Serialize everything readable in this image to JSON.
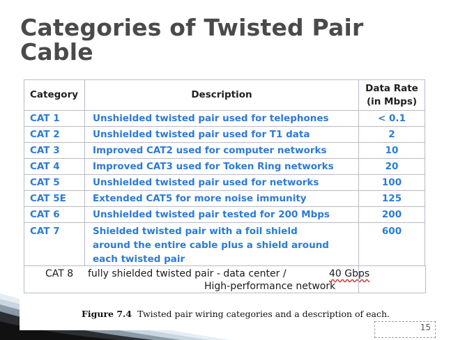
{
  "slide": {
    "title": "Categories of Twisted Pair Cable",
    "page_number": "15"
  },
  "table": {
    "headers": {
      "category": "Category",
      "description": "Description",
      "rate_line1": "Data Rate",
      "rate_line2": "(in Mbps)"
    },
    "rows": [
      {
        "category": "CAT 1",
        "description": "Unshielded twisted pair used for telephones",
        "rate": "< 0.1"
      },
      {
        "category": "CAT 2",
        "description": "Unshielded twisted pair used for T1 data",
        "rate": "2"
      },
      {
        "category": "CAT 3",
        "description": "Improved CAT2 used for computer networks",
        "rate": "10"
      },
      {
        "category": "CAT 4",
        "description": "Improved CAT3 used for Token Ring networks",
        "rate": "20"
      },
      {
        "category": "CAT 5",
        "description": "Unshielded twisted pair used for networks",
        "rate": "100"
      },
      {
        "category": "CAT 5E",
        "description": "Extended CAT5 for more noise immunity",
        "rate": "125"
      },
      {
        "category": "CAT 6",
        "description": "Unshielded twisted pair tested for 200 Mbps",
        "rate": "200"
      },
      {
        "category": "CAT 7",
        "description_lines": [
          "Shielded twisted pair with a foil shield",
          "around the entire cable plus a shield around",
          "each twisted pair"
        ],
        "rate": "600"
      }
    ],
    "added_row": {
      "category": "CAT 8",
      "description": "fully shielded twisted pair  - data center /",
      "description_line2": "High-performance network",
      "rate": "40 Gbps"
    }
  },
  "caption": {
    "label": "Figure 7.4",
    "text": "Twisted pair wiring categories and a description of each."
  },
  "colors": {
    "title": "#4a4a4a",
    "table_text": "#2b7bd6",
    "border": "#b9b9c8"
  }
}
